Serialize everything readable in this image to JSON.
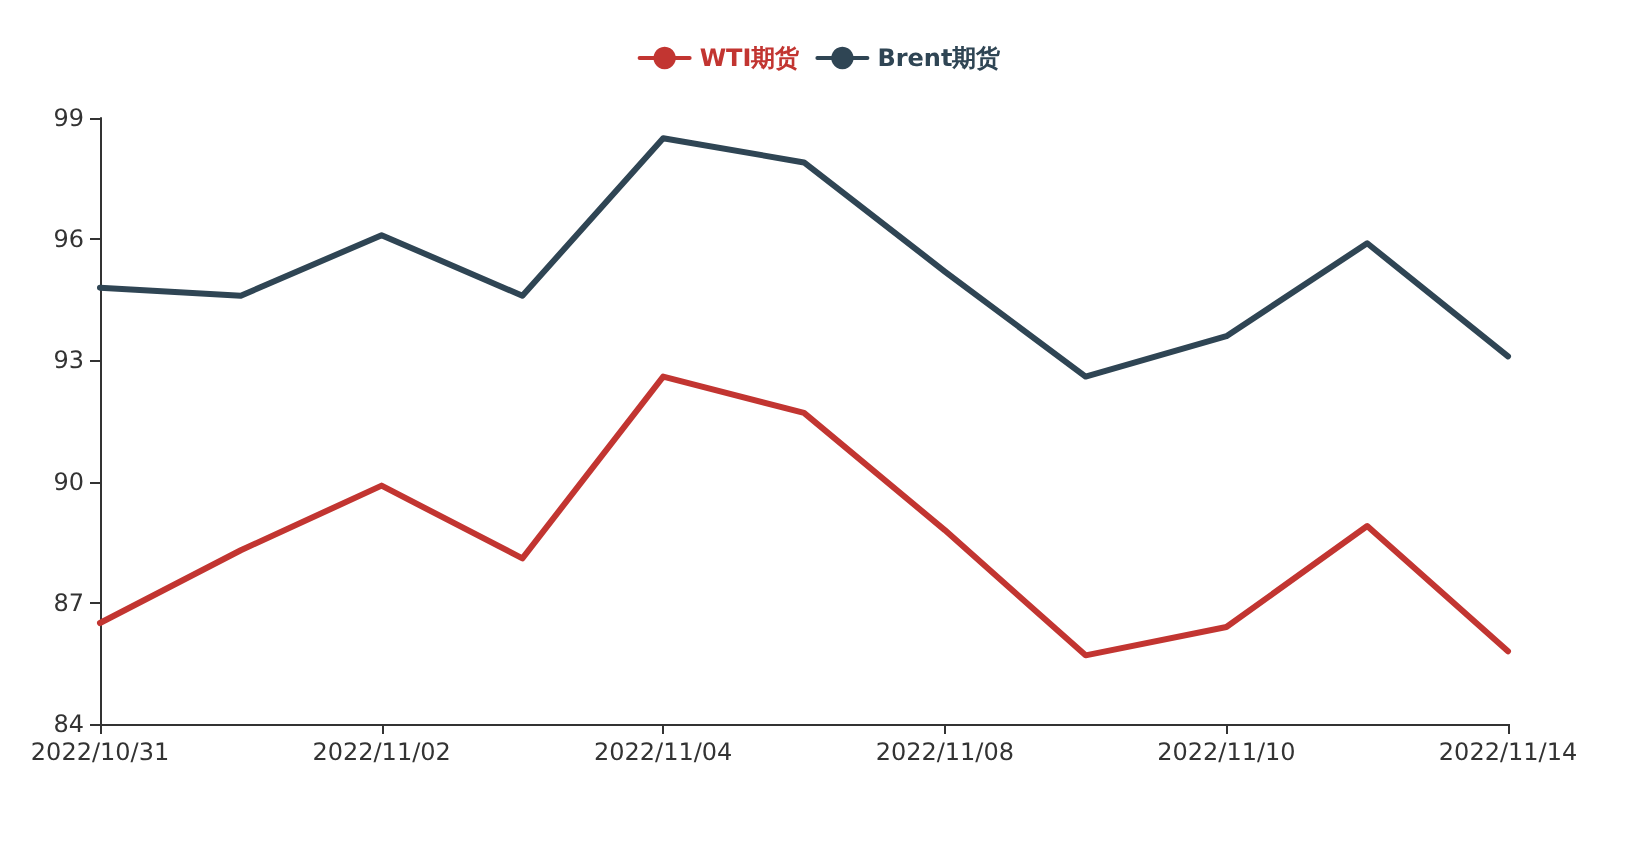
{
  "chart_data": {
    "type": "line",
    "categories": [
      "2022/10/31",
      null,
      "2022/11/02",
      null,
      "2022/11/04",
      null,
      "2022/11/08",
      null,
      "2022/11/10",
      null,
      "2022/11/14"
    ],
    "series": [
      {
        "name": "WTI期货",
        "color": "#c23531",
        "values": [
          86.5,
          88.3,
          89.9,
          88.1,
          92.6,
          91.7,
          88.8,
          85.7,
          86.4,
          88.9,
          85.8
        ]
      },
      {
        "name": "Brent期货",
        "color": "#2f4554",
        "values": [
          94.8,
          94.6,
          96.1,
          94.6,
          98.5,
          97.9,
          95.2,
          92.6,
          93.6,
          95.9,
          93.1
        ]
      }
    ],
    "ylim": [
      84,
      99
    ],
    "yticks": [
      84,
      87,
      90,
      93,
      96,
      99
    ],
    "grid": false,
    "legend": "top",
    "marker": "none",
    "line_style": "solid"
  }
}
